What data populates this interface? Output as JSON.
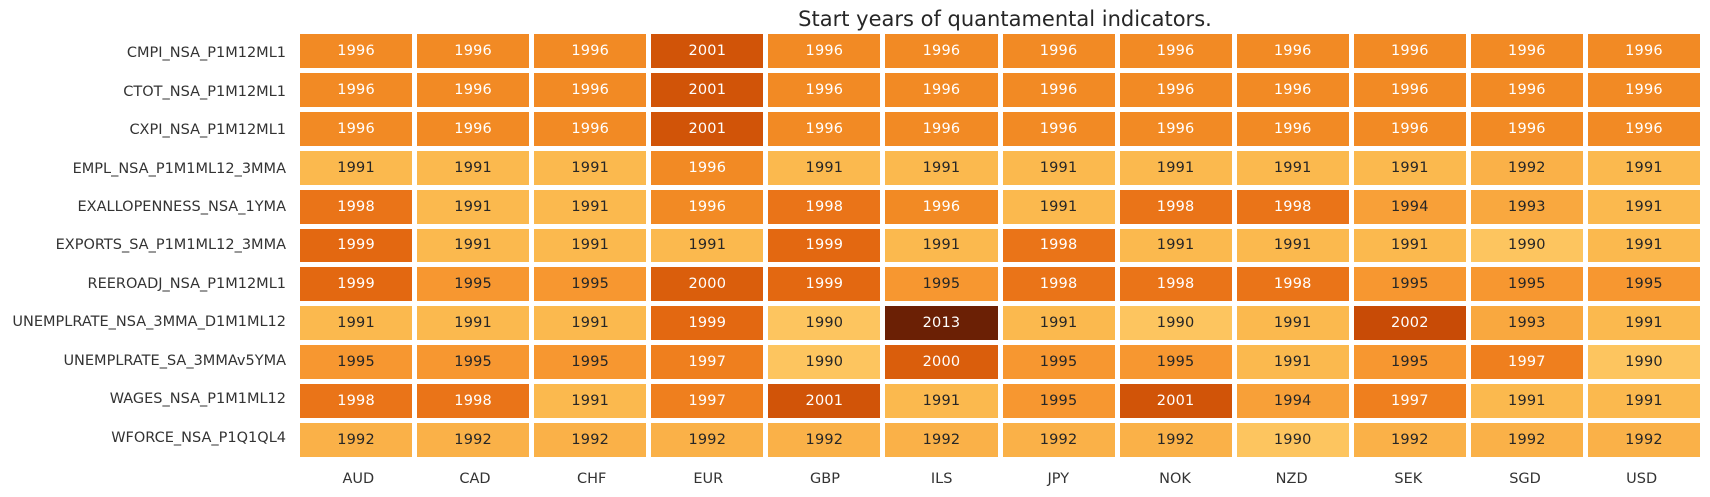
{
  "title": "Start years of quantamental indicators.",
  "chart_data": {
    "type": "heatmap",
    "title": "Start years of quantamental indicators.",
    "xlabel": "",
    "ylabel": "",
    "legend": false,
    "grid": false,
    "columns": [
      "AUD",
      "CAD",
      "CHF",
      "EUR",
      "GBP",
      "ILS",
      "JPY",
      "NOK",
      "NZD",
      "SEK",
      "SGD",
      "USD"
    ],
    "rows": [
      "CMPI_NSA_P1M12ML1",
      "CTOT_NSA_P1M12ML1",
      "CXPI_NSA_P1M12ML1",
      "EMPL_NSA_P1M1ML12_3MMA",
      "EXALLOPENNESS_NSA_1YMA",
      "EXPORTS_SA_P1M1ML12_3MMA",
      "REEROADJ_NSA_P1M12ML1",
      "UNEMPLRATE_NSA_3MMA_D1M1ML12",
      "UNEMPLRATE_SA_3MMAv5YMA",
      "WAGES_NSA_P1M1ML12",
      "WFORCE_NSA_P1Q1QL4"
    ],
    "values": [
      [
        1996,
        1996,
        1996,
        2001,
        1996,
        1996,
        1996,
        1996,
        1996,
        1996,
        1996,
        1996
      ],
      [
        1996,
        1996,
        1996,
        2001,
        1996,
        1996,
        1996,
        1996,
        1996,
        1996,
        1996,
        1996
      ],
      [
        1996,
        1996,
        1996,
        2001,
        1996,
        1996,
        1996,
        1996,
        1996,
        1996,
        1996,
        1996
      ],
      [
        1991,
        1991,
        1991,
        1996,
        1991,
        1991,
        1991,
        1991,
        1991,
        1991,
        1992,
        1991
      ],
      [
        1998,
        1991,
        1991,
        1996,
        1998,
        1996,
        1991,
        1998,
        1998,
        1994,
        1993,
        1991
      ],
      [
        1999,
        1991,
        1991,
        1991,
        1999,
        1991,
        1998,
        1991,
        1991,
        1991,
        1990,
        1991
      ],
      [
        1999,
        1995,
        1995,
        2000,
        1999,
        1995,
        1998,
        1998,
        1998,
        1995,
        1995,
        1995
      ],
      [
        1991,
        1991,
        1991,
        1999,
        1990,
        2013,
        1991,
        1990,
        1991,
        2002,
        1993,
        1991
      ],
      [
        1995,
        1995,
        1995,
        1997,
        1990,
        2000,
        1995,
        1995,
        1991,
        1995,
        1997,
        1990
      ],
      [
        1998,
        1998,
        1991,
        1997,
        2001,
        1991,
        1995,
        2001,
        1994,
        1997,
        1991,
        1991
      ],
      [
        1992,
        1992,
        1992,
        1992,
        1992,
        1992,
        1992,
        1992,
        1990,
        1992,
        1992,
        1992
      ]
    ],
    "value_range": [
      1990,
      2013
    ],
    "colormap": {
      "1990": "#FDC55F",
      "1991": "#FBB94E",
      "1992": "#FAB148",
      "1993": "#F9A83F",
      "1994": "#F8A038",
      "1995": "#F79730",
      "1996": "#F28A24",
      "1997": "#EF7F1E",
      "1998": "#EA7418",
      "1999": "#E36811",
      "2000": "#DA5E0C",
      "2001": "#D15408",
      "2002": "#C84B06",
      "2013": "#6B2005"
    },
    "text_color_rule": {
      "white_from_year": 1996,
      "dark_text": "#262626",
      "light_text": "#FFFFFF"
    }
  }
}
